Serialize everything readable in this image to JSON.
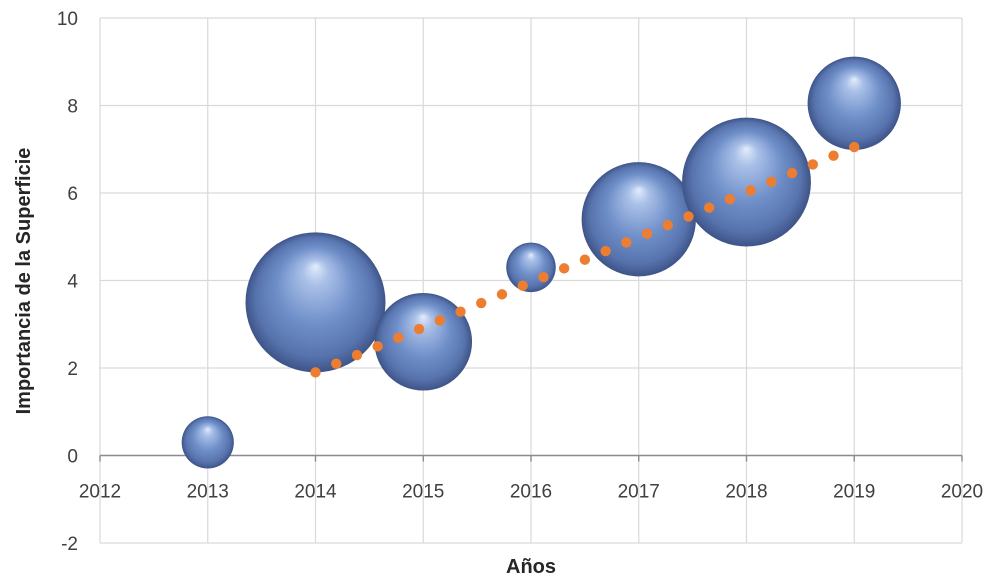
{
  "chart_data": {
    "type": "scatter",
    "subtype": "bubble",
    "title": "",
    "xlabel": "Años",
    "ylabel": "Importancia de la Superficie",
    "xlim": [
      2012,
      2020
    ],
    "ylim": [
      -2,
      10
    ],
    "x_ticks": [
      "2012",
      "2013",
      "2014",
      "2015",
      "2016",
      "2017",
      "2018",
      "2019",
      "2020"
    ],
    "y_ticks": [
      "-2",
      "0",
      "2",
      "4",
      "6",
      "8",
      "10"
    ],
    "grid": true,
    "legend": "none",
    "series": [
      {
        "x": [
          2013,
          2014,
          2015,
          2016,
          2017,
          2018,
          2019
        ],
        "y": [
          0.3,
          3.5,
          2.6,
          4.3,
          5.4,
          6.25,
          8.05
        ],
        "size": [
          1.0,
          7.2,
          3.5,
          0.9,
          4.8,
          6.1,
          3.2
        ],
        "color": "#6f8fc9"
      }
    ],
    "trendline": {
      "type": "linear",
      "style": "dotted",
      "color": "#ed7d31",
      "x_range": [
        2014,
        2019
      ],
      "y_range": [
        1.9,
        7.05
      ]
    }
  }
}
